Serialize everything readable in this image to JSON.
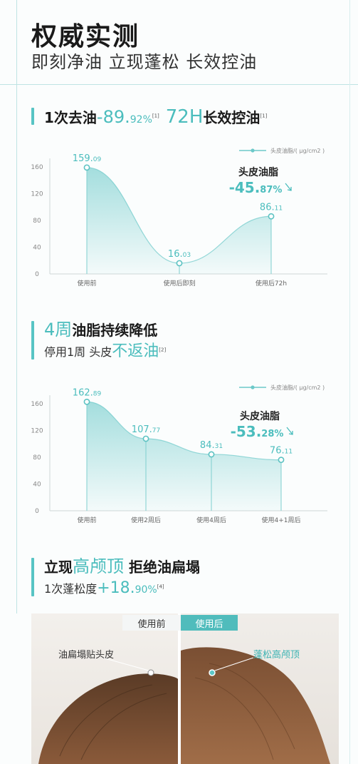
{
  "hero": {
    "title": "权威实测",
    "subtitle": "即刻净油 立现蓬松 长效控油"
  },
  "section1": {
    "prefix": "1次去油",
    "value_main": "-89.",
    "value_decimal": "92%",
    "ref_a": "[1]",
    "value2": "72H",
    "suffix": "长效控油",
    "ref_b": "[1]"
  },
  "section2": {
    "heading_em": "4周",
    "heading": "油脂持续降低",
    "line2_prefix": "停用1周  头皮",
    "line2_em": "不返油",
    "ref": "[2]"
  },
  "section3": {
    "heading_prefix": "立现",
    "heading_em": "高颅顶",
    "heading_suffix": " 拒绝油扁塌",
    "line2_prefix": "1次蓬松度",
    "value_main": "+18.",
    "value_decimal": "90%",
    "ref": "[4]"
  },
  "photo": {
    "tag_before": "使用前",
    "tag_after": "使用后",
    "label_left": "油扁塌贴头皮",
    "label_right": "蓬松高颅顶"
  },
  "chart_data": [
    {
      "type": "area",
      "legend": "头皮油脂/( μg/cm2 )",
      "annotation_title": "头皮油脂",
      "annotation_value": "-45.87%",
      "categories": [
        "使用前",
        "使用后即刻",
        "使用后72h"
      ],
      "value_labels": [
        {
          "main": "159.",
          "decimal": "09"
        },
        {
          "main": "16.",
          "decimal": "03"
        },
        {
          "main": "86.",
          "decimal": "11"
        }
      ],
      "values": [
        159.09,
        16.03,
        86.11
      ],
      "yticks": [
        "160",
        "120",
        "80",
        "40",
        "0"
      ],
      "ylim": [
        0,
        160
      ],
      "colors": {
        "line": "#6cc9c9",
        "fill": "#9fdcdc"
      }
    },
    {
      "type": "area",
      "legend": "头皮油脂/( μg/cm2 )",
      "annotation_title": "头皮油脂",
      "annotation_value": "-53.28%",
      "categories": [
        "使用前",
        "使用2周后",
        "使用4周后",
        "使用4+1周后"
      ],
      "value_labels": [
        {
          "main": "162.",
          "decimal": "89"
        },
        {
          "main": "107.",
          "decimal": "77"
        },
        {
          "main": "84.",
          "decimal": "31"
        },
        {
          "main": "76.",
          "decimal": "11"
        }
      ],
      "values": [
        162.89,
        107.77,
        84.31,
        76.11
      ],
      "yticks": [
        "160",
        "120",
        "80",
        "40",
        "0"
      ],
      "ylim": [
        0,
        160
      ],
      "colors": {
        "line": "#6cc9c9",
        "fill": "#9fdcdc"
      }
    }
  ]
}
